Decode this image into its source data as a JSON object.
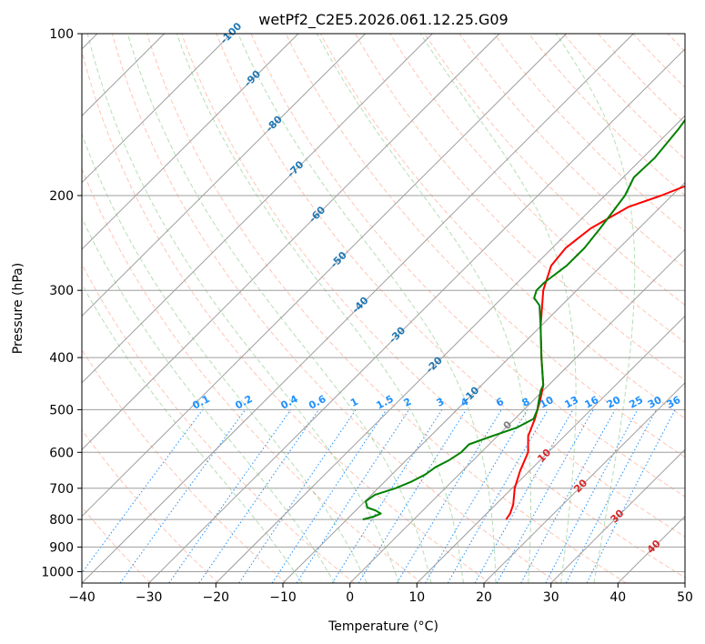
{
  "chart_data": {
    "type": "skew-t log-p",
    "title": "wetPf2_C2E5.2026.061.12.25.G09",
    "xlabel": "Temperature (°C)",
    "ylabel": "Pressure (hPa)",
    "xlim": [
      -40,
      50
    ],
    "ylim_hpa": [
      1050,
      100
    ],
    "x_ticks": [
      -40,
      -30,
      -20,
      -10,
      0,
      10,
      20,
      30,
      40,
      50
    ],
    "y_ticks": [
      100,
      200,
      300,
      400,
      500,
      600,
      700,
      800,
      900,
      1000
    ],
    "isotherm_labels": [
      -100,
      -90,
      -80,
      -70,
      -60,
      -50,
      -40,
      -30,
      -20,
      -10,
      0,
      10,
      20,
      30,
      40
    ],
    "isotherm_label_strings": [
      "-100",
      "-90",
      "-80",
      "-70",
      "-60",
      "-50",
      "-40",
      "-30",
      "-20",
      "-10",
      "0",
      "10",
      "20",
      "30",
      "40"
    ],
    "mixing_ratio_labels": [
      "0.1",
      "0.2",
      "0.4",
      "0.6",
      "1",
      "1.5",
      "2",
      "3",
      "4",
      "6",
      "8",
      "10",
      "13",
      "16",
      "20",
      "25",
      "30",
      "36"
    ],
    "mixing_ratios": [
      0.1,
      0.2,
      0.4,
      0.6,
      1,
      1.5,
      2,
      3,
      4,
      6,
      8,
      10,
      13,
      16,
      20,
      25,
      30,
      36
    ],
    "series": [
      {
        "name": "Temperature",
        "color": "#ff0000",
        "pressure": [
          800,
          780,
          750,
          700,
          650,
          600,
          560,
          520,
          480,
          450,
          400,
          350,
          300,
          270,
          250,
          230,
          210,
          200,
          185,
          170,
          150,
          130,
          120,
          110,
          100
        ],
        "values": [
          13.8,
          13.5,
          12.6,
          10.4,
          8.6,
          7.0,
          4.6,
          3.0,
          1.0,
          -0.8,
          -5.2,
          -10.0,
          -15.0,
          -17.5,
          -18.0,
          -17.2,
          -14.8,
          -11.6,
          -7.4,
          -3.0,
          2.0,
          8.0,
          11.0,
          13.0,
          15.0
        ]
      },
      {
        "name": "Dewpoint",
        "color": "#008000",
        "pressure": [
          800,
          790,
          780,
          770,
          760,
          740,
          720,
          700,
          680,
          660,
          640,
          620,
          600,
          580,
          560,
          540,
          520,
          500,
          480,
          460,
          450,
          400,
          350,
          320,
          310,
          300,
          290,
          270,
          250,
          230,
          200,
          185,
          170,
          150,
          130,
          120,
          100
        ],
        "values": [
          -7.6,
          -6.4,
          -5.8,
          -7.0,
          -8.7,
          -9.9,
          -9.5,
          -7.4,
          -6.0,
          -5.0,
          -4.6,
          -3.6,
          -3.0,
          -3.0,
          -0.8,
          1.6,
          2.8,
          2.0,
          0.8,
          -0.4,
          -0.8,
          -5.2,
          -10.0,
          -13.3,
          -15.2,
          -16.0,
          -16.0,
          -15.2,
          -15.2,
          -15.8,
          -17.0,
          -18.4,
          -18.2,
          -19.0,
          -20.4,
          -20.8,
          -21.5
        ]
      }
    ]
  }
}
